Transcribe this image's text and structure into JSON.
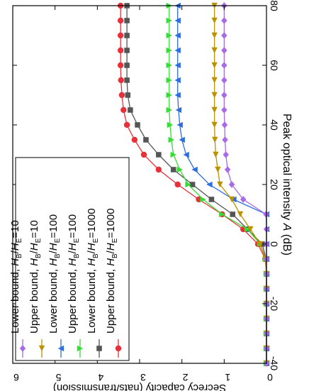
{
  "chart_data": {
    "type": "line",
    "title": "",
    "xlabel": "Peak optical intensity A (dB)",
    "xlabel_parts": {
      "prefix": "Peak optical intensity ",
      "italic": "A",
      "suffix": " (dB)"
    },
    "ylabel": "Secrecy capacity (nats/transmission)",
    "xlim": [
      -40,
      80
    ],
    "ylim": [
      0,
      6
    ],
    "xticks": [
      -40,
      -20,
      0,
      20,
      40,
      60,
      80
    ],
    "yticks": [
      0,
      1,
      2,
      3,
      4,
      5,
      6
    ],
    "orientation": "rotated-90-clockwise",
    "grid": false,
    "legend_position": "bottom-left",
    "x": [
      -40,
      -35,
      -30,
      -25,
      -20,
      -15,
      -10,
      -5,
      0,
      5,
      10,
      15,
      20,
      25,
      30,
      35,
      40,
      45,
      50,
      55,
      60,
      65,
      70,
      75,
      80
    ],
    "series": [
      {
        "name": "Upper bound, HB/HE=1000",
        "legend": {
          "pre": "Upper bound, ",
          "ratio": "1000"
        },
        "color": "#e8303a",
        "marker": "circle",
        "values": [
          0,
          0,
          0,
          0,
          0,
          0,
          0,
          0.03,
          0.2,
          0.55,
          1.05,
          1.6,
          2.1,
          2.55,
          2.9,
          3.12,
          3.3,
          3.38,
          3.42,
          3.44,
          3.45,
          3.45,
          3.45,
          3.45,
          3.45
        ]
      },
      {
        "name": "Lower bound, HB/HE=1000",
        "legend": {
          "pre": "Lower bound, ",
          "ratio": "1000"
        },
        "color": "#555555",
        "marker": "square",
        "values": [
          0,
          0,
          0,
          0,
          0,
          0,
          0,
          0.01,
          0.1,
          0.45,
          0.8,
          1.3,
          1.75,
          2.2,
          2.55,
          2.85,
          3.05,
          3.22,
          3.28,
          3.3,
          3.3,
          3.3,
          3.3,
          3.3,
          3.3
        ]
      },
      {
        "name": "Upper bound, HB/HE=100",
        "legend": {
          "pre": "Upper bound, ",
          "ratio": "100"
        },
        "color": "#33dd33",
        "marker": "triangle-right",
        "values": [
          0,
          0,
          0,
          0,
          0,
          0,
          0,
          0.02,
          0.15,
          0.45,
          1.05,
          1.5,
          1.85,
          2.05,
          2.2,
          2.25,
          2.28,
          2.3,
          2.3,
          2.3,
          2.3,
          2.3,
          2.3,
          2.3,
          2.3
        ]
      },
      {
        "name": "Lower bound, HB/HE=100",
        "legend": {
          "pre": "Lower bound, ",
          "ratio": "100"
        },
        "color": "#2d6de0",
        "marker": "triangle-left",
        "values": [
          0,
          0,
          0,
          0,
          0,
          0,
          0,
          0,
          0,
          0,
          0,
          0.78,
          1.35,
          1.7,
          1.9,
          2.0,
          2.05,
          2.08,
          2.1,
          2.1,
          2.1,
          2.1,
          2.1,
          2.1,
          2.1
        ]
      },
      {
        "name": "Upper bound, HB/HE=10",
        "legend": {
          "pre": "Upper bound, ",
          "ratio": "10"
        },
        "color": "#bb9200",
        "marker": "triangle-down",
        "values": [
          0,
          0,
          0,
          0,
          0,
          0,
          0,
          0.02,
          0.15,
          0.38,
          0.62,
          0.82,
          1.1,
          1.15,
          1.2,
          1.22,
          1.23,
          1.23,
          1.23,
          1.23,
          1.23,
          1.23,
          1.23,
          1.23,
          1.23
        ]
      },
      {
        "name": "Lower bound, HB/HE=10",
        "legend": {
          "pre": "Lower bound, ",
          "ratio": "10"
        },
        "color": "#a86ae8",
        "marker": "diamond",
        "values": [
          0,
          0,
          0,
          0,
          0,
          0,
          0,
          0,
          0,
          0,
          0.01,
          0.55,
          0.82,
          0.92,
          0.96,
          0.98,
          0.99,
          1.0,
          1.0,
          1.0,
          1.0,
          1.0,
          1.0,
          1.0,
          1.0
        ]
      }
    ]
  }
}
